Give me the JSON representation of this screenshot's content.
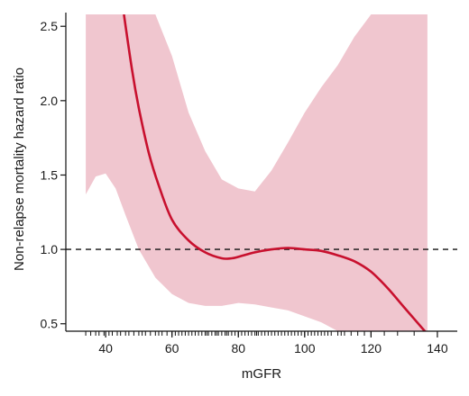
{
  "chart_data": {
    "type": "line",
    "xlabel": "mGFR",
    "ylabel": "Non-relapse mortality hazard ratio",
    "xlim": [
      28,
      146
    ],
    "ylim": [
      0.45,
      2.58
    ],
    "x_ticks": [
      40,
      60,
      80,
      100,
      120,
      140
    ],
    "x_tick_labels": [
      "40",
      "60",
      "80",
      "100",
      "120",
      "140"
    ],
    "y_ticks": [
      0.5,
      1.0,
      1.5,
      2.0,
      2.5
    ],
    "y_tick_labels": [
      "0.5",
      "1.0",
      "1.5",
      "2.0",
      "2.5"
    ],
    "reference_line": {
      "y": 1.0,
      "style": "dashed"
    },
    "grid": false,
    "series": [
      {
        "kind": "line",
        "x": [
          45.5,
          48,
          50,
          53,
          56,
          60,
          65,
          70,
          75,
          78,
          80,
          85,
          90,
          95,
          100,
          105,
          110,
          115,
          120,
          125,
          130,
          137
        ],
        "y": [
          2.58,
          2.2,
          1.95,
          1.65,
          1.43,
          1.2,
          1.06,
          0.98,
          0.94,
          0.94,
          0.95,
          0.98,
          1.0,
          1.01,
          1.0,
          0.99,
          0.96,
          0.92,
          0.85,
          0.74,
          0.61,
          0.43
        ]
      },
      {
        "kind": "confidence_band",
        "x": [
          34,
          37,
          40,
          43,
          46,
          50,
          55,
          60,
          65,
          70,
          75,
          80,
          85,
          90,
          95,
          100,
          105,
          110,
          115,
          120,
          125,
          130,
          135,
          137
        ],
        "upper": [
          2.58,
          2.58,
          2.58,
          2.58,
          2.58,
          2.58,
          2.58,
          2.3,
          1.92,
          1.66,
          1.47,
          1.41,
          1.39,
          1.53,
          1.72,
          1.92,
          2.09,
          2.24,
          2.43,
          2.58,
          2.58,
          2.58,
          2.58,
          2.58
        ],
        "lower": [
          1.37,
          1.49,
          1.51,
          1.41,
          1.23,
          1.0,
          0.81,
          0.7,
          0.64,
          0.62,
          0.62,
          0.64,
          0.63,
          0.61,
          0.59,
          0.55,
          0.51,
          0.45,
          0.45,
          0.45,
          0.45,
          0.45,
          0.45,
          0.45
        ]
      }
    ],
    "rug_x": [
      34,
      35.5,
      37,
      38,
      39.5,
      41,
      42,
      43.5,
      44.5,
      46,
      47,
      48.5,
      50,
      51,
      52,
      53.5,
      55,
      56,
      57,
      58.5,
      60,
      61,
      62,
      63,
      64,
      65,
      66,
      67,
      68,
      69,
      70,
      70.5,
      71,
      72,
      73,
      73.5,
      74,
      75,
      76,
      76.5,
      77,
      78,
      79,
      80,
      81,
      82,
      83,
      84,
      85,
      85.5,
      86,
      87,
      88,
      89,
      90,
      91,
      92,
      93,
      94,
      95,
      96,
      97,
      98,
      99,
      100,
      101,
      102,
      103,
      104,
      105,
      106,
      107,
      108,
      110,
      111,
      112,
      114,
      116,
      118,
      120,
      124,
      128,
      133
    ],
    "colors": {
      "curve": "#c8102e",
      "band": "#f0c6cf",
      "reference": "#111111",
      "axis": "#111111"
    }
  }
}
